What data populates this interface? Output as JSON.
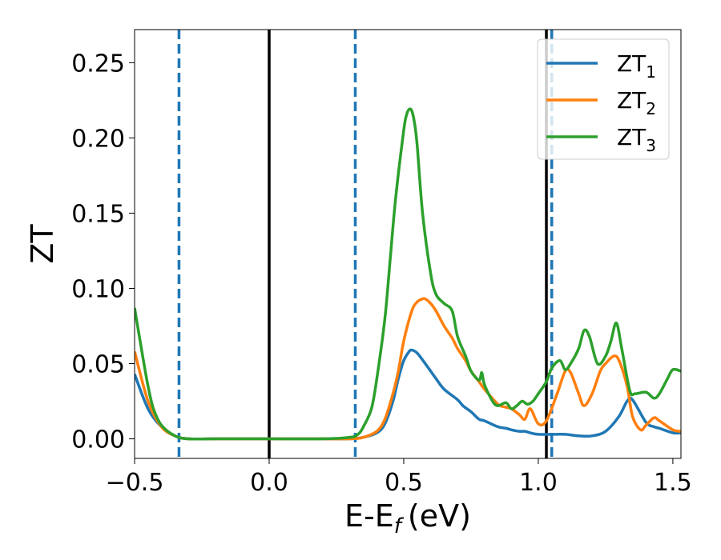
{
  "chart_data": {
    "type": "line",
    "xlabel": "E-E",
    "xlabel_sub": "f",
    "xlabel_unit": "(eV)",
    "ylabel": "ZT",
    "xlim": [
      -0.5,
      1.53
    ],
    "ylim": [
      -0.013,
      0.272
    ],
    "xticks": [
      -0.5,
      0.0,
      0.5,
      1.0,
      1.5
    ],
    "xtick_labels": [
      "−0.5",
      "0.0",
      "0.5",
      "1.0",
      "1.5"
    ],
    "yticks": [
      0.0,
      0.05,
      0.1,
      0.15,
      0.2,
      0.25
    ],
    "ytick_labels": [
      "0.00",
      "0.05",
      "0.10",
      "0.15",
      "0.20",
      "0.25"
    ],
    "grid": false,
    "legend_position": "top-right",
    "vlines": [
      {
        "x": -0.335,
        "style": "dashed",
        "color": "#1f77b4"
      },
      {
        "x": 0.0,
        "style": "solid",
        "color": "#000000"
      },
      {
        "x": 0.32,
        "style": "dashed",
        "color": "#1f77b4"
      },
      {
        "x": 1.03,
        "style": "solid",
        "color": "#000000"
      },
      {
        "x": 1.05,
        "style": "dashed",
        "color": "#1f77b4"
      }
    ],
    "series": [
      {
        "name": "ZT",
        "sub": "1",
        "color": "#1f77b4",
        "x": [
          -0.5,
          -0.45,
          -0.4,
          -0.35,
          -0.3,
          -0.2,
          0.0,
          0.2,
          0.3,
          0.35,
          0.4,
          0.43,
          0.46,
          0.48,
          0.5,
          0.52,
          0.53,
          0.55,
          0.58,
          0.6,
          0.62,
          0.65,
          0.7,
          0.72,
          0.75,
          0.78,
          0.8,
          0.85,
          0.88,
          0.9,
          0.93,
          0.95,
          0.97,
          1.0,
          1.05,
          1.1,
          1.15,
          1.2,
          1.25,
          1.3,
          1.33,
          1.35,
          1.4,
          1.43,
          1.45,
          1.5,
          1.53
        ],
        "y": [
          0.043,
          0.02,
          0.008,
          0.002,
          0.0,
          0.0,
          0.0,
          0.0,
          0.0,
          0.001,
          0.004,
          0.01,
          0.025,
          0.04,
          0.052,
          0.058,
          0.059,
          0.057,
          0.05,
          0.045,
          0.04,
          0.033,
          0.026,
          0.022,
          0.018,
          0.013,
          0.012,
          0.008,
          0.007,
          0.006,
          0.005,
          0.005,
          0.004,
          0.003,
          0.003,
          0.003,
          0.002,
          0.002,
          0.005,
          0.015,
          0.025,
          0.026,
          0.011,
          0.008,
          0.007,
          0.004,
          0.004
        ]
      },
      {
        "name": "ZT",
        "sub": "2",
        "color": "#ff7f0e",
        "x": [
          -0.5,
          -0.45,
          -0.4,
          -0.35,
          -0.3,
          -0.2,
          0.0,
          0.2,
          0.3,
          0.35,
          0.4,
          0.43,
          0.46,
          0.48,
          0.5,
          0.53,
          0.55,
          0.57,
          0.58,
          0.6,
          0.62,
          0.65,
          0.68,
          0.7,
          0.73,
          0.75,
          0.78,
          0.8,
          0.85,
          0.88,
          0.9,
          0.93,
          0.95,
          0.97,
          1.0,
          1.03,
          1.07,
          1.1,
          1.12,
          1.15,
          1.17,
          1.2,
          1.23,
          1.25,
          1.28,
          1.3,
          1.33,
          1.35,
          1.38,
          1.4,
          1.43,
          1.45,
          1.5,
          1.53
        ],
        "y": [
          0.058,
          0.025,
          0.008,
          0.002,
          0.0,
          0.0,
          0.0,
          0.0,
          0.0,
          0.001,
          0.005,
          0.013,
          0.03,
          0.045,
          0.065,
          0.085,
          0.091,
          0.093,
          0.093,
          0.09,
          0.085,
          0.075,
          0.067,
          0.06,
          0.052,
          0.045,
          0.038,
          0.033,
          0.023,
          0.021,
          0.02,
          0.016,
          0.013,
          0.02,
          0.01,
          0.012,
          0.03,
          0.045,
          0.044,
          0.03,
          0.022,
          0.03,
          0.045,
          0.05,
          0.055,
          0.052,
          0.035,
          0.015,
          0.006,
          0.009,
          0.014,
          0.012,
          0.006,
          0.005
        ]
      },
      {
        "name": "ZT",
        "sub": "3",
        "color": "#2ca02c",
        "x": [
          -0.5,
          -0.47,
          -0.45,
          -0.43,
          -0.4,
          -0.35,
          -0.3,
          -0.2,
          0.0,
          0.2,
          0.3,
          0.33,
          0.35,
          0.38,
          0.4,
          0.43,
          0.45,
          0.47,
          0.5,
          0.51,
          0.52,
          0.53,
          0.54,
          0.55,
          0.57,
          0.6,
          0.62,
          0.65,
          0.68,
          0.7,
          0.73,
          0.75,
          0.78,
          0.79,
          0.8,
          0.83,
          0.85,
          0.88,
          0.9,
          0.92,
          0.94,
          0.96,
          0.98,
          1.0,
          1.03,
          1.05,
          1.08,
          1.1,
          1.12,
          1.15,
          1.17,
          1.19,
          1.22,
          1.25,
          1.27,
          1.29,
          1.31,
          1.34,
          1.36,
          1.4,
          1.43,
          1.45,
          1.48,
          1.5,
          1.53
        ],
        "y": [
          0.087,
          0.055,
          0.035,
          0.02,
          0.009,
          0.002,
          0.0,
          0.0,
          0.0,
          0.0,
          0.001,
          0.003,
          0.008,
          0.02,
          0.04,
          0.08,
          0.12,
          0.16,
          0.205,
          0.215,
          0.219,
          0.218,
          0.21,
          0.195,
          0.15,
          0.11,
          0.096,
          0.09,
          0.085,
          0.068,
          0.055,
          0.045,
          0.039,
          0.044,
          0.036,
          0.025,
          0.022,
          0.024,
          0.02,
          0.022,
          0.025,
          0.023,
          0.025,
          0.03,
          0.038,
          0.047,
          0.052,
          0.046,
          0.05,
          0.06,
          0.072,
          0.068,
          0.05,
          0.055,
          0.065,
          0.077,
          0.06,
          0.032,
          0.03,
          0.031,
          0.027,
          0.03,
          0.04,
          0.046,
          0.045
        ]
      }
    ]
  }
}
